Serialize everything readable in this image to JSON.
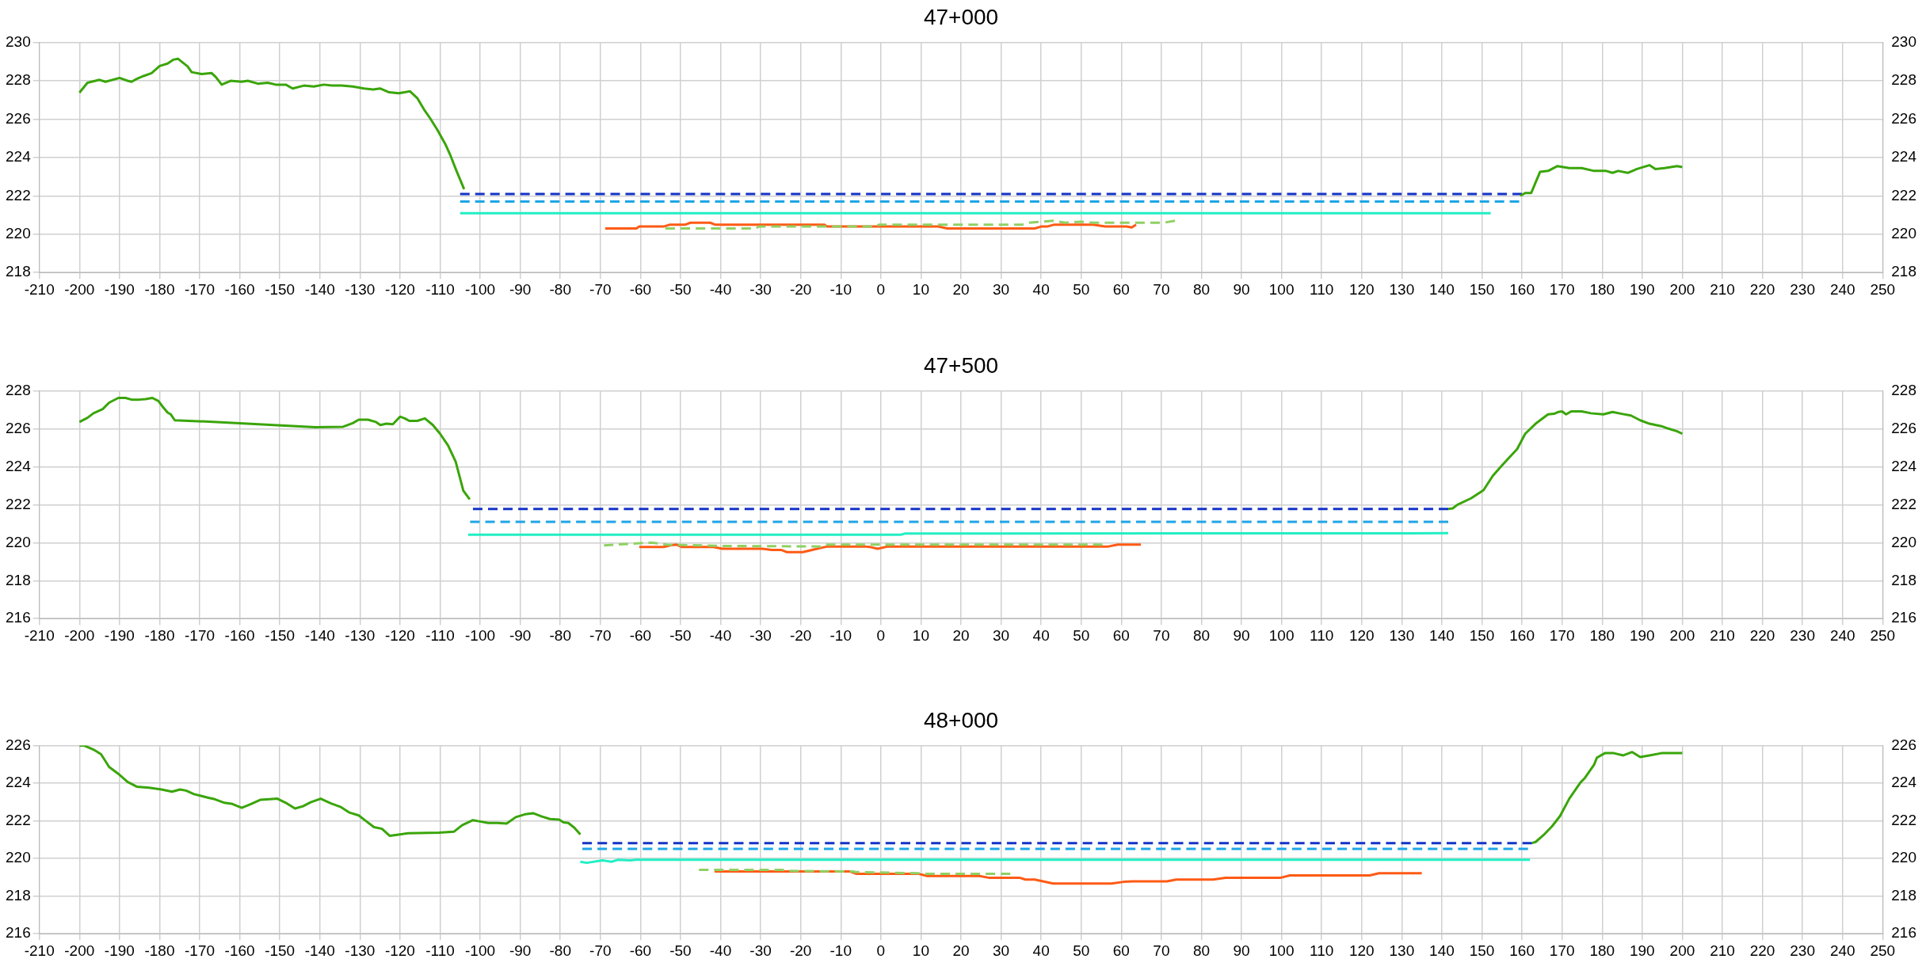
{
  "chart_data": [
    {
      "type": "line",
      "title": "47+000",
      "xlim": [
        -210,
        250
      ],
      "xticks": [
        -210,
        -200,
        -190,
        -180,
        -170,
        -160,
        -150,
        -140,
        -130,
        -120,
        -110,
        -100,
        -90,
        -80,
        -70,
        -60,
        -50,
        -40,
        -30,
        -20,
        -10,
        0,
        10,
        20,
        30,
        40,
        50,
        60,
        70,
        80,
        90,
        100,
        110,
        120,
        130,
        140,
        150,
        160,
        170,
        180,
        190,
        200,
        210,
        220,
        230,
        240,
        250
      ],
      "ylim": [
        218,
        230
      ],
      "yticks": [
        218,
        220,
        222,
        224,
        226,
        228,
        230
      ],
      "y2lim": [
        218,
        230
      ],
      "y2ticks": [
        218,
        220,
        222,
        224,
        226,
        228,
        230
      ],
      "grid": true,
      "legend": false,
      "series": [
        {
          "color": "#3aa50a",
          "line_style": "solid",
          "x": [
            -200,
            -198,
            -195,
            -193.5,
            -190,
            -188,
            -187,
            -185.7,
            -184,
            -182,
            -180,
            -178,
            -176.6,
            -175.4,
            -174.5,
            -173,
            -172,
            -169.5,
            -167,
            -166,
            -164.5,
            -162.3,
            -159.5,
            -158,
            -155.5,
            -153,
            -151,
            -148.5,
            -146.8,
            -144,
            -141.5,
            -139,
            -137,
            -134.6,
            -131.8,
            -129,
            -126.7,
            -125,
            -122.7,
            -120.3,
            -117.5,
            -115.7,
            -114,
            -112.5,
            -110.7,
            -108.7,
            -107.4,
            -106,
            -104
          ],
          "values": [
            227.38,
            227.9,
            228.05,
            227.95,
            228.15,
            228.0,
            227.95,
            228.1,
            228.25,
            228.4,
            228.77,
            228.9,
            229.1,
            229.15,
            229.0,
            228.75,
            228.45,
            228.35,
            228.4,
            228.2,
            227.8,
            228.0,
            227.95,
            228.0,
            227.85,
            227.9,
            227.8,
            227.8,
            227.6,
            227.75,
            227.7,
            227.8,
            227.75,
            227.75,
            227.7,
            227.6,
            227.55,
            227.6,
            227.4,
            227.35,
            227.45,
            227.1,
            226.5,
            226.05,
            225.45,
            224.7,
            224.1,
            223.35,
            222.35
          ]
        },
        {
          "color": "#3aa50a",
          "line_style": "solid",
          "x": [
            159.6,
            160.8,
            162.3,
            164.5,
            166.5,
            168.8,
            171.8,
            174.9,
            178,
            181,
            182.6,
            184,
            186.4,
            188.7,
            191.8,
            193.3,
            195.6,
            198.7,
            200
          ],
          "values": [
            222.0,
            222.15,
            222.15,
            223.25,
            223.3,
            223.55,
            223.45,
            223.45,
            223.3,
            223.3,
            223.2,
            223.3,
            223.2,
            223.4,
            223.6,
            223.4,
            223.45,
            223.55,
            223.5
          ]
        },
        {
          "color": "#1433c8",
          "line_style": "dashed",
          "x": [
            -105,
            160
          ],
          "values": [
            222.1,
            222.1
          ]
        },
        {
          "color": "#1ea5e6",
          "line_style": "dashed",
          "x": [
            -105,
            159.3
          ],
          "values": [
            221.7,
            221.7
          ]
        },
        {
          "color": "#22eec4",
          "line_style": "solid",
          "x": [
            -105,
            152.2
          ],
          "values": [
            221.1,
            221.1
          ]
        },
        {
          "color": "#8fd164",
          "line_style": "dashed",
          "x": [
            -53.8,
            -31.2,
            -30.4,
            -1.2,
            -0.4,
            20,
            35.3,
            36.9,
            43,
            46,
            49.9,
            53,
            56.8,
            70.6,
            73.4
          ],
          "values": [
            220.3,
            220.3,
            220.4,
            220.4,
            220.5,
            220.5,
            220.5,
            220.6,
            220.7,
            220.6,
            220.65,
            220.6,
            220.6,
            220.6,
            220.7
          ]
        },
        {
          "color": "#ff5a14",
          "line_style": "solid",
          "x": [
            -68.8,
            -61,
            -60.3,
            -54.2,
            -52.6,
            -48.8,
            -47.5,
            -42.6,
            -41.4,
            -19.5,
            -14.2,
            -13.4,
            14.3,
            16.6,
            38.4,
            40,
            41.5,
            43.3,
            53,
            56,
            61.4,
            62.6,
            63.7
          ],
          "values": [
            220.3,
            220.3,
            220.4,
            220.4,
            220.5,
            220.5,
            220.6,
            220.6,
            220.5,
            220.5,
            220.5,
            220.4,
            220.4,
            220.3,
            220.3,
            220.4,
            220.4,
            220.5,
            220.5,
            220.4,
            220.4,
            220.35,
            220.5
          ]
        }
      ]
    },
    {
      "type": "line",
      "title": "47+500",
      "xlim": [
        -210,
        250
      ],
      "xticks": [
        -210,
        -200,
        -190,
        -180,
        -170,
        -160,
        -150,
        -140,
        -130,
        -120,
        -110,
        -100,
        -90,
        -80,
        -70,
        -60,
        -50,
        -40,
        -30,
        -20,
        -10,
        0,
        10,
        20,
        30,
        40,
        50,
        60,
        70,
        80,
        90,
        100,
        110,
        120,
        130,
        140,
        150,
        160,
        170,
        180,
        190,
        200,
        210,
        220,
        230,
        240,
        250
      ],
      "ylim": [
        216,
        228
      ],
      "yticks": [
        216,
        218,
        220,
        222,
        224,
        226,
        228
      ],
      "y2lim": [
        216,
        228
      ],
      "y2ticks": [
        216,
        218,
        220,
        222,
        224,
        226,
        228
      ],
      "grid": true,
      "legend": false,
      "series": [
        {
          "color": "#3aa50a",
          "line_style": "solid",
          "x": [
            -200,
            -198,
            -196.5,
            -194.2,
            -192.6,
            -190.3,
            -188.5,
            -187,
            -185,
            -183.5,
            -181.8,
            -180.3,
            -179.2,
            -178,
            -177.2,
            -176.2,
            -165.7,
            -141.1,
            -134.2,
            -131.8,
            -130.3,
            -128,
            -126,
            -124.9,
            -123.4,
            -121.8,
            -120,
            -118.8,
            -117.7,
            -115.7,
            -113.8,
            -111.8,
            -110,
            -108,
            -106.1,
            -104.2,
            -102.6
          ],
          "values": [
            226.36,
            226.58,
            226.82,
            227.04,
            227.38,
            227.63,
            227.63,
            227.54,
            227.54,
            227.57,
            227.63,
            227.47,
            227.16,
            226.86,
            226.76,
            226.45,
            226.36,
            226.08,
            226.11,
            226.3,
            226.48,
            226.48,
            226.36,
            226.2,
            226.27,
            226.24,
            226.64,
            226.55,
            226.42,
            226.42,
            226.55,
            226.2,
            225.74,
            225.12,
            224.26,
            222.74,
            222.28
          ]
        },
        {
          "color": "#3aa50a",
          "line_style": "solid",
          "x": [
            141.6,
            142.7,
            143.9,
            147.3,
            150.4,
            152.7,
            155,
            158.8,
            160.8,
            163.4,
            166.5,
            168,
            169.1,
            170,
            171,
            172.3,
            174.9,
            177.2,
            180.3,
            182.6,
            184.9,
            187.2,
            189.5,
            191.8,
            194.8,
            196.4,
            198.7,
            200
          ],
          "values": [
            221.78,
            221.81,
            222.0,
            222.34,
            222.77,
            223.52,
            224.07,
            224.94,
            225.74,
            226.27,
            226.76,
            226.79,
            226.89,
            226.92,
            226.76,
            226.92,
            226.92,
            226.82,
            226.76,
            226.89,
            226.79,
            226.7,
            226.45,
            226.27,
            226.14,
            226.02,
            225.87,
            225.74
          ]
        },
        {
          "color": "#1433c8",
          "line_style": "dashed",
          "x": [
            -101.8,
            141.6
          ],
          "values": [
            221.78,
            221.78
          ]
        },
        {
          "color": "#1ea5e6",
          "line_style": "dashed",
          "x": [
            -102.5,
            141.6
          ],
          "values": [
            221.1,
            221.1
          ]
        },
        {
          "color": "#22eec4",
          "line_style": "solid",
          "x": [
            -103,
            5,
            6,
            141.6
          ],
          "values": [
            220.42,
            220.42,
            220.48,
            220.5
          ]
        },
        {
          "color": "#8fd164",
          "line_style": "dashed",
          "x": [
            -69.1,
            -61.1,
            -57.3,
            -53.4,
            -40.4,
            -15,
            -13.4,
            55.3
          ],
          "values": [
            219.86,
            219.96,
            220.0,
            219.9,
            219.83,
            219.8,
            219.9,
            219.9
          ]
        },
        {
          "color": "#ff5a14",
          "line_style": "solid",
          "x": [
            -60.3,
            -54.2,
            -52.6,
            -51.1,
            -49.6,
            -41.8,
            -39.5,
            -29.5,
            -27.2,
            -24.9,
            -23.4,
            -19.5,
            -17.2,
            -13.4,
            -4.2,
            -2.6,
            -0.8,
            1.7,
            56.8,
            59.1,
            64.9
          ],
          "values": [
            219.77,
            219.77,
            219.86,
            219.9,
            219.77,
            219.77,
            219.68,
            219.68,
            219.62,
            219.62,
            219.5,
            219.5,
            219.62,
            219.8,
            219.8,
            219.77,
            219.68,
            219.8,
            219.8,
            219.9,
            219.9
          ]
        }
      ]
    },
    {
      "type": "line",
      "title": "48+000",
      "xlim": [
        -210,
        250
      ],
      "xticks": [
        -210,
        -200,
        -190,
        -180,
        -170,
        -160,
        -150,
        -140,
        -130,
        -120,
        -110,
        -100,
        -90,
        -80,
        -70,
        -60,
        -50,
        -40,
        -30,
        -20,
        -10,
        0,
        10,
        20,
        30,
        40,
        50,
        60,
        70,
        80,
        90,
        100,
        110,
        120,
        130,
        140,
        150,
        160,
        170,
        180,
        190,
        200,
        210,
        220,
        230,
        240,
        250
      ],
      "ylim": [
        216,
        226
      ],
      "yticks": [
        216,
        218,
        220,
        222,
        224,
        226
      ],
      "y2lim": [
        216,
        226
      ],
      "y2ticks": [
        216,
        218,
        220,
        222,
        224,
        226
      ],
      "grid": true,
      "legend": false,
      "series": [
        {
          "color": "#3aa50a",
          "line_style": "solid",
          "x": [
            -200,
            -198.8,
            -196.5,
            -194.6,
            -192.6,
            -190.3,
            -188,
            -185.7,
            -182.6,
            -179.5,
            -176.9,
            -174.9,
            -173.4,
            -171.4,
            -168,
            -166.2,
            -163.8,
            -161.8,
            -159.5,
            -157.2,
            -154.9,
            -152.6,
            -150.6,
            -148.5,
            -146.2,
            -144.2,
            -142.3,
            -139.8,
            -137.2,
            -134.9,
            -132.6,
            -130.3,
            -128.8,
            -126.5,
            -124.5,
            -122.6,
            -121.1,
            -118,
            -110.3,
            -106.5,
            -104.5,
            -101.8,
            -100.3,
            -98,
            -95.7,
            -93.4,
            -91.1,
            -88.8,
            -86.8,
            -84.6,
            -82.6,
            -80.3,
            -79.2,
            -78,
            -76.5,
            -75
          ],
          "values": [
            226,
            226,
            225.79,
            225.54,
            224.87,
            224.5,
            224.07,
            223.82,
            223.76,
            223.67,
            223.55,
            223.67,
            223.61,
            223.42,
            223.24,
            223.15,
            222.96,
            222.9,
            222.69,
            222.9,
            223.12,
            223.15,
            223.18,
            222.96,
            222.66,
            222.78,
            222.99,
            223.18,
            222.93,
            222.75,
            222.44,
            222.29,
            222.04,
            221.67,
            221.58,
            221.21,
            221.25,
            221.34,
            221.37,
            221.43,
            221.77,
            222.04,
            221.98,
            221.89,
            221.89,
            221.86,
            222.2,
            222.35,
            222.41,
            222.23,
            222.1,
            222.07,
            221.92,
            221.89,
            221.64,
            221.28
          ]
        },
        {
          "color": "#3aa50a",
          "line_style": "solid",
          "x": [
            162.5,
            163.4,
            165.4,
            167.5,
            169.5,
            171.8,
            173.4,
            174.6,
            175.7,
            178,
            178.7,
            180.7,
            182.9,
            185.3,
            187.5,
            189.5,
            191.8,
            194.8,
            200
          ],
          "values": [
            220.82,
            220.88,
            221.25,
            221.71,
            222.26,
            223.18,
            223.67,
            224.04,
            224.28,
            224.99,
            225.36,
            225.6,
            225.6,
            225.48,
            225.66,
            225.39,
            225.48,
            225.6,
            225.6
          ]
        },
        {
          "color": "#1433c8",
          "line_style": "dashed",
          "x": [
            -74.5,
            162.5
          ],
          "values": [
            220.82,
            220.82
          ]
        },
        {
          "color": "#1ea5e6",
          "line_style": "dashed",
          "x": [
            -74.5,
            161.5
          ],
          "values": [
            220.51,
            220.51
          ]
        },
        {
          "color": "#22eec4",
          "line_style": "solid",
          "x": [
            -75,
            -73.4,
            -69.5,
            -67.2,
            -65.7,
            -62.6,
            -61.1,
            162
          ],
          "values": [
            219.83,
            219.77,
            219.9,
            219.83,
            219.93,
            219.9,
            219.93,
            219.93
          ]
        },
        {
          "color": "#8fd164",
          "line_style": "dashed",
          "x": [
            -45.4,
            -24.7,
            -23,
            -7,
            -6.2,
            9.3,
            10.8,
            32.3
          ],
          "values": [
            219.4,
            219.4,
            219.34,
            219.31,
            219.28,
            219.22,
            219.19,
            219.19
          ]
        },
        {
          "color": "#ff5a14",
          "line_style": "solid",
          "x": [
            -41.5,
            -23,
            -7.7,
            -6.2,
            9.3,
            11.6,
            24.6,
            26.9,
            34.6,
            36.1,
            38.4,
            43,
            57.6,
            60.6,
            62.9,
            71.4,
            73.7,
            82.9,
            86,
            99.8,
            102.1,
            122,
            124.3,
            135
          ],
          "values": [
            219.31,
            219.31,
            219.31,
            219.19,
            219.19,
            219.07,
            219.07,
            218.98,
            218.98,
            218.88,
            218.88,
            218.67,
            218.67,
            218.76,
            218.79,
            218.79,
            218.88,
            218.88,
            218.98,
            218.98,
            219.1,
            219.1,
            219.22,
            219.22
          ]
        }
      ]
    }
  ]
}
